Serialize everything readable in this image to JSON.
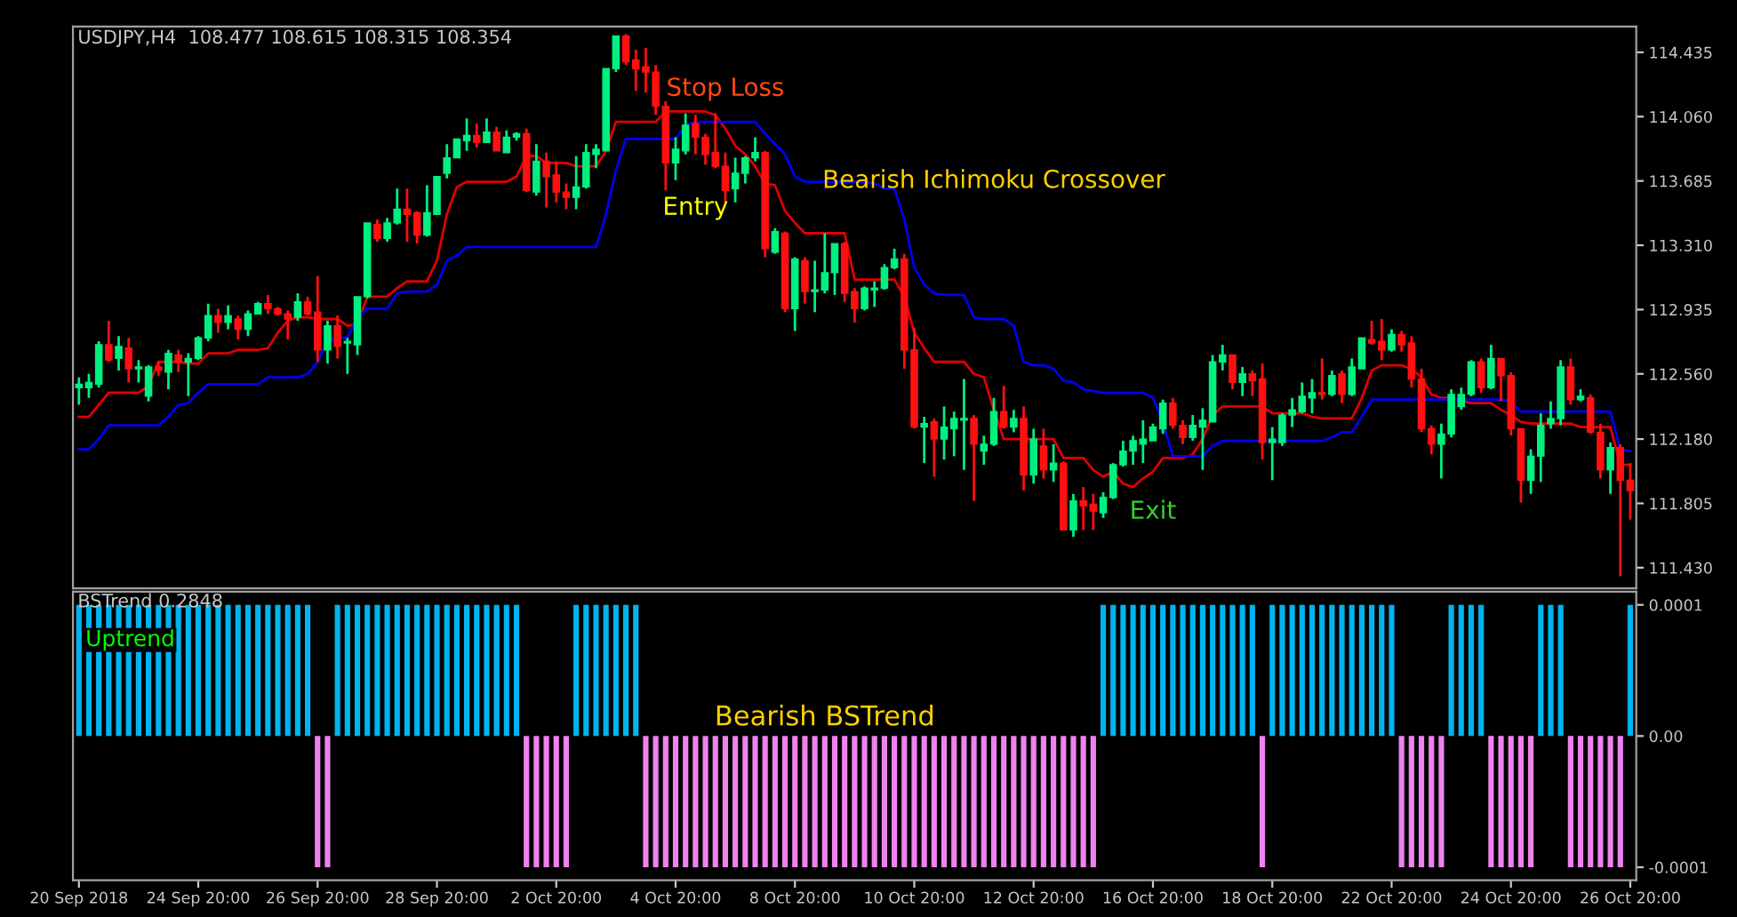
{
  "chart_data": [
    {
      "type": "candlestick",
      "title": "USDJPY,H4  108.477 108.615 108.315 108.354",
      "categories": [
        null,
        null,
        null,
        null,
        null,
        null,
        null,
        null,
        null,
        null,
        null,
        null,
        null,
        null,
        null,
        null,
        null,
        null,
        null,
        null,
        null,
        null,
        null,
        null,
        null,
        null,
        null,
        null,
        null,
        null,
        null,
        null,
        null,
        null,
        null,
        null,
        null,
        null,
        null,
        null,
        null,
        null,
        null,
        null,
        null,
        null,
        null,
        null,
        null,
        null,
        null,
        null,
        null,
        null,
        null,
        null,
        null,
        null,
        null,
        null,
        null,
        null,
        null,
        null,
        null,
        null,
        null,
        null,
        null,
        null,
        null,
        null,
        null,
        null,
        null,
        null,
        null,
        null,
        null,
        null,
        null,
        null,
        null,
        null,
        null,
        null,
        null,
        null,
        null,
        null,
        null,
        null,
        null,
        null,
        null,
        null,
        null,
        null,
        null,
        null,
        null,
        null,
        null,
        null,
        null,
        null,
        null,
        null,
        null,
        null,
        null,
        null,
        null,
        null,
        null,
        null,
        null,
        null,
        null,
        null,
        null,
        null,
        null,
        null,
        null,
        null,
        null,
        null,
        null,
        null,
        null,
        null,
        null,
        null,
        null,
        null,
        null,
        null,
        null,
        null,
        null,
        null,
        null,
        null,
        null,
        null,
        null,
        null,
        null,
        null,
        null,
        null,
        null,
        null,
        null,
        null,
        null
      ],
      "ohlc": [
        [
          112.48,
          112.54,
          112.38,
          112.5
        ],
        [
          112.48,
          112.56,
          112.42,
          112.51
        ],
        [
          112.5,
          112.75,
          112.48,
          112.73
        ],
        [
          112.73,
          112.87,
          112.63,
          112.64
        ],
        [
          112.65,
          112.78,
          112.58,
          112.72
        ],
        [
          112.71,
          112.77,
          112.51,
          112.59
        ],
        [
          112.59,
          112.64,
          112.51,
          112.6
        ],
        [
          112.43,
          112.61,
          112.4,
          112.6
        ],
        [
          112.6,
          112.63,
          112.55,
          112.58
        ],
        [
          112.57,
          112.7,
          112.47,
          112.68
        ],
        [
          112.67,
          112.7,
          112.57,
          112.63
        ],
        [
          112.63,
          112.68,
          112.43,
          112.65
        ],
        [
          112.65,
          112.78,
          112.64,
          112.77
        ],
        [
          112.77,
          112.97,
          112.75,
          112.9
        ],
        [
          112.9,
          112.94,
          112.8,
          112.86
        ],
        [
          112.86,
          112.96,
          112.82,
          112.9
        ],
        [
          112.88,
          112.9,
          112.76,
          112.82
        ],
        [
          112.82,
          112.93,
          112.78,
          112.91
        ],
        [
          112.91,
          112.98,
          112.91,
          112.97
        ],
        [
          112.97,
          113.02,
          112.91,
          112.94
        ],
        [
          112.94,
          112.95,
          112.9,
          112.91
        ],
        [
          112.91,
          112.93,
          112.76,
          112.88
        ],
        [
          112.89,
          113.03,
          112.87,
          112.98
        ],
        [
          112.98,
          113.01,
          112.9,
          112.91
        ],
        [
          112.92,
          113.13,
          112.63,
          112.7
        ],
        [
          112.7,
          112.87,
          112.62,
          112.84
        ],
        [
          112.84,
          112.9,
          112.65,
          112.72
        ],
        [
          112.74,
          112.77,
          112.56,
          112.75
        ],
        [
          112.73,
          113.01,
          112.67,
          113.01
        ],
        [
          113.01,
          113.44,
          113.0,
          113.44
        ],
        [
          113.43,
          113.46,
          113.33,
          113.35
        ],
        [
          113.35,
          113.47,
          113.33,
          113.44
        ],
        [
          113.44,
          113.64,
          113.43,
          113.52
        ],
        [
          113.52,
          113.64,
          113.33,
          113.49
        ],
        [
          113.5,
          113.51,
          113.32,
          113.37
        ],
        [
          113.37,
          113.66,
          113.36,
          113.5
        ],
        [
          113.49,
          113.71,
          113.49,
          113.71
        ],
        [
          113.73,
          113.9,
          113.7,
          113.82
        ],
        [
          113.82,
          113.93,
          113.82,
          113.93
        ],
        [
          113.92,
          114.05,
          113.86,
          113.95
        ],
        [
          113.95,
          114.02,
          113.88,
          113.91
        ],
        [
          113.91,
          114.05,
          113.91,
          113.97
        ],
        [
          113.97,
          114.0,
          113.86,
          113.86
        ],
        [
          113.85,
          113.98,
          113.85,
          113.94
        ],
        [
          113.94,
          113.97,
          113.92,
          113.96
        ],
        [
          113.96,
          113.99,
          113.62,
          113.63
        ],
        [
          113.62,
          113.9,
          113.6,
          113.8
        ],
        [
          113.8,
          113.85,
          113.53,
          113.71
        ],
        [
          113.72,
          113.8,
          113.56,
          113.62
        ],
        [
          113.62,
          113.67,
          113.52,
          113.59
        ],
        [
          113.59,
          113.83,
          113.52,
          113.65
        ],
        [
          113.65,
          113.9,
          113.64,
          113.85
        ],
        [
          113.84,
          113.9,
          113.76,
          113.87
        ],
        [
          113.86,
          114.34,
          113.86,
          114.34
        ],
        [
          114.34,
          114.53,
          114.32,
          114.53
        ],
        [
          114.53,
          114.54,
          114.36,
          114.38
        ],
        [
          114.39,
          114.45,
          114.21,
          114.34
        ],
        [
          114.35,
          114.46,
          114.2,
          114.32
        ],
        [
          114.32,
          114.36,
          114.07,
          114.12
        ],
        [
          114.12,
          114.15,
          113.63,
          113.79
        ],
        [
          113.79,
          113.94,
          113.69,
          113.87
        ],
        [
          113.86,
          114.08,
          113.84,
          114.01
        ],
        [
          114.02,
          114.07,
          113.84,
          113.94
        ],
        [
          113.94,
          113.96,
          113.78,
          113.84
        ],
        [
          113.85,
          114.08,
          113.76,
          113.77
        ],
        [
          113.77,
          113.85,
          113.56,
          113.63
        ],
        [
          113.64,
          113.82,
          113.56,
          113.73
        ],
        [
          113.73,
          113.83,
          113.67,
          113.82
        ],
        [
          113.82,
          113.94,
          113.8,
          113.85
        ],
        [
          113.85,
          113.86,
          113.24,
          113.29
        ],
        [
          113.27,
          113.41,
          113.26,
          113.39
        ],
        [
          113.38,
          113.39,
          112.92,
          112.94
        ],
        [
          112.94,
          113.24,
          112.81,
          113.23
        ],
        [
          113.22,
          113.24,
          112.97,
          113.04
        ],
        [
          113.04,
          113.22,
          112.92,
          113.05
        ],
        [
          113.05,
          113.38,
          113.03,
          113.15
        ],
        [
          113.15,
          113.32,
          113.02,
          113.32
        ],
        [
          113.32,
          113.33,
          112.98,
          113.03
        ],
        [
          113.04,
          113.06,
          112.86,
          112.94
        ],
        [
          112.94,
          113.07,
          112.93,
          113.06
        ],
        [
          113.05,
          113.1,
          112.95,
          113.06
        ],
        [
          113.06,
          113.2,
          113.05,
          113.18
        ],
        [
          113.18,
          113.29,
          113.17,
          113.23
        ],
        [
          113.23,
          113.26,
          112.59,
          112.7
        ],
        [
          112.7,
          112.83,
          112.24,
          112.25
        ],
        [
          112.25,
          112.31,
          112.04,
          112.27
        ],
        [
          112.28,
          112.3,
          111.96,
          112.18
        ],
        [
          112.18,
          112.37,
          112.06,
          112.25
        ],
        [
          112.24,
          112.34,
          112.08,
          112.3
        ],
        [
          112.29,
          112.53,
          112.0,
          112.3
        ],
        [
          112.3,
          112.32,
          111.82,
          112.15
        ],
        [
          112.11,
          112.2,
          112.03,
          112.15
        ],
        [
          112.15,
          112.42,
          112.14,
          112.34
        ],
        [
          112.34,
          112.49,
          112.24,
          112.25
        ],
        [
          112.25,
          112.35,
          112.22,
          112.3
        ],
        [
          112.3,
          112.37,
          111.88,
          111.97
        ],
        [
          111.97,
          112.24,
          111.92,
          112.18
        ],
        [
          112.14,
          112.24,
          111.95,
          112.0
        ],
        [
          112.0,
          112.15,
          111.93,
          112.04
        ],
        [
          112.04,
          112.05,
          111.65,
          111.65
        ],
        [
          111.65,
          111.86,
          111.61,
          111.82
        ],
        [
          111.82,
          111.9,
          111.65,
          111.79
        ],
        [
          111.8,
          111.86,
          111.65,
          111.76
        ],
        [
          111.75,
          111.87,
          111.72,
          111.84
        ],
        [
          111.84,
          112.04,
          111.83,
          112.03
        ],
        [
          112.03,
          112.17,
          112.02,
          112.11
        ],
        [
          112.11,
          112.2,
          112.03,
          112.17
        ],
        [
          112.15,
          112.29,
          112.04,
          112.18
        ],
        [
          112.17,
          112.27,
          112.17,
          112.25
        ],
        [
          112.24,
          112.41,
          112.21,
          112.39
        ],
        [
          112.39,
          112.42,
          112.24,
          112.26
        ],
        [
          112.26,
          112.29,
          112.15,
          112.19
        ],
        [
          112.19,
          112.32,
          112.17,
          112.26
        ],
        [
          112.25,
          112.36,
          112.0,
          112.29
        ],
        [
          112.28,
          112.67,
          112.28,
          112.63
        ],
        [
          112.63,
          112.73,
          112.58,
          112.67
        ],
        [
          112.67,
          112.67,
          112.47,
          112.51
        ],
        [
          112.51,
          112.6,
          112.43,
          112.56
        ],
        [
          112.56,
          112.58,
          112.43,
          112.52
        ],
        [
          112.53,
          112.62,
          112.06,
          112.16
        ],
        [
          112.16,
          112.25,
          111.94,
          112.18
        ],
        [
          112.16,
          112.33,
          112.14,
          112.32
        ],
        [
          112.32,
          112.42,
          112.25,
          112.35
        ],
        [
          112.34,
          112.51,
          112.33,
          112.43
        ],
        [
          112.42,
          112.53,
          112.33,
          112.45
        ],
        [
          112.45,
          112.65,
          112.41,
          112.44
        ],
        [
          112.44,
          112.58,
          112.43,
          112.55
        ],
        [
          112.56,
          112.58,
          112.39,
          112.44
        ],
        [
          112.44,
          112.65,
          112.43,
          112.6
        ],
        [
          112.59,
          112.77,
          112.59,
          112.77
        ],
        [
          112.76,
          112.87,
          112.73,
          112.74
        ],
        [
          112.75,
          112.88,
          112.64,
          112.7
        ],
        [
          112.7,
          112.82,
          112.69,
          112.79
        ],
        [
          112.79,
          112.81,
          112.69,
          112.73
        ],
        [
          112.74,
          112.78,
          112.48,
          112.53
        ],
        [
          112.53,
          112.59,
          112.22,
          112.24
        ],
        [
          112.24,
          112.26,
          112.09,
          112.15
        ],
        [
          112.15,
          112.27,
          111.95,
          112.21
        ],
        [
          112.21,
          112.47,
          112.19,
          112.44
        ],
        [
          112.37,
          112.48,
          112.35,
          112.44
        ],
        [
          112.44,
          112.64,
          112.43,
          112.63
        ],
        [
          112.63,
          112.65,
          112.45,
          112.48
        ],
        [
          112.48,
          112.73,
          112.47,
          112.65
        ],
        [
          112.65,
          112.65,
          112.4,
          112.55
        ],
        [
          112.55,
          112.57,
          112.2,
          112.24
        ],
        [
          112.24,
          112.24,
          111.81,
          111.94
        ],
        [
          111.94,
          112.12,
          111.86,
          112.08
        ],
        [
          112.08,
          112.33,
          111.93,
          112.26
        ],
        [
          112.27,
          112.4,
          112.24,
          112.3
        ],
        [
          112.3,
          112.64,
          112.26,
          112.6
        ],
        [
          112.6,
          112.65,
          112.38,
          112.41
        ],
        [
          112.41,
          112.47,
          112.4,
          112.43
        ],
        [
          112.42,
          112.44,
          112.21,
          112.22
        ],
        [
          112.22,
          112.27,
          111.95,
          112.0
        ],
        [
          112.0,
          112.16,
          111.86,
          112.13
        ],
        [
          112.13,
          112.15,
          111.38,
          111.94
        ],
        [
          111.94,
          112.04,
          111.71,
          111.88
        ]
      ],
      "series": [
        {
          "type": "line",
          "color": "#e00000",
          "values": [
            112.31,
            112.31,
            112.38,
            112.45,
            112.45,
            112.45,
            112.45,
            112.49,
            112.63,
            112.63,
            112.63,
            112.62,
            112.62,
            112.68,
            112.68,
            112.68,
            112.7,
            112.7,
            112.7,
            112.71,
            112.8,
            112.87,
            112.89,
            112.89,
            112.88,
            112.88,
            112.88,
            112.84,
            112.85,
            113.01,
            113.01,
            113.01,
            113.06,
            113.1,
            113.1,
            113.1,
            113.22,
            113.49,
            113.65,
            113.68,
            113.68,
            113.68,
            113.68,
            113.68,
            113.71,
            113.83,
            113.83,
            113.79,
            113.79,
            113.79,
            113.77,
            113.77,
            113.77,
            113.86,
            114.03,
            114.03,
            114.03,
            114.03,
            114.03,
            114.09,
            114.09,
            114.09,
            114.09,
            114.09,
            114.07,
            113.99,
            113.89,
            113.84,
            113.77,
            113.67,
            113.66,
            113.51,
            113.44,
            113.38,
            113.38,
            113.38,
            113.38,
            113.38,
            113.11,
            113.11,
            113.11,
            113.11,
            113.11,
            113.01,
            112.8,
            112.71,
            112.63,
            112.63,
            112.63,
            112.63,
            112.56,
            112.54,
            112.35,
            112.18,
            112.18,
            112.18,
            112.18,
            112.18,
            112.18,
            112.07,
            112.07,
            112.07,
            112.0,
            111.96,
            111.99,
            111.92,
            111.9,
            111.95,
            111.99,
            112.07,
            112.07,
            112.07,
            112.09,
            112.18,
            112.32,
            112.37,
            112.37,
            112.37,
            112.37,
            112.37,
            112.33,
            112.33,
            112.33,
            112.33,
            112.31,
            112.3,
            112.3,
            112.3,
            112.3,
            112.42,
            112.58,
            112.61,
            112.61,
            112.61,
            112.59,
            112.54,
            112.44,
            112.42,
            112.42,
            112.4,
            112.39,
            112.39,
            112.39,
            112.35,
            112.32,
            112.28,
            112.27,
            112.27,
            112.27,
            112.27,
            112.27,
            112.25,
            112.25,
            112.25,
            112.25,
            112.03,
            112.03
          ]
        },
        {
          "type": "line",
          "color": "#0000f0",
          "values": [
            112.12,
            112.12,
            112.18,
            112.26,
            112.26,
            112.26,
            112.26,
            112.26,
            112.26,
            112.31,
            112.38,
            112.39,
            112.45,
            112.5,
            112.5,
            112.5,
            112.5,
            112.5,
            112.5,
            112.54,
            112.54,
            112.54,
            112.54,
            112.56,
            112.63,
            112.75,
            112.77,
            112.77,
            112.89,
            112.94,
            112.94,
            112.94,
            113.03,
            113.04,
            113.04,
            113.04,
            113.08,
            113.22,
            113.25,
            113.3,
            113.3,
            113.3,
            113.3,
            113.3,
            113.3,
            113.3,
            113.3,
            113.3,
            113.3,
            113.3,
            113.3,
            113.3,
            113.3,
            113.49,
            113.75,
            113.93,
            113.93,
            113.93,
            113.93,
            113.93,
            113.93,
            114.01,
            114.03,
            114.03,
            114.03,
            114.03,
            114.03,
            114.03,
            114.03,
            113.96,
            113.9,
            113.84,
            113.71,
            113.68,
            113.68,
            113.68,
            113.68,
            113.68,
            113.68,
            113.68,
            113.67,
            113.64,
            113.64,
            113.46,
            113.18,
            113.08,
            113.03,
            113.02,
            113.02,
            113.02,
            112.89,
            112.88,
            112.88,
            112.88,
            112.84,
            112.63,
            112.61,
            112.61,
            112.59,
            112.52,
            112.51,
            112.47,
            112.46,
            112.45,
            112.45,
            112.45,
            112.45,
            112.45,
            112.42,
            112.28,
            112.08,
            112.08,
            112.08,
            112.08,
            112.14,
            112.17,
            112.17,
            112.17,
            112.17,
            112.17,
            112.17,
            112.17,
            112.17,
            112.17,
            112.17,
            112.17,
            112.19,
            112.22,
            112.22,
            112.31,
            112.41,
            112.41,
            112.41,
            112.41,
            112.41,
            112.41,
            112.41,
            112.41,
            112.41,
            112.41,
            112.41,
            112.41,
            112.41,
            112.41,
            112.4,
            112.34,
            112.34,
            112.34,
            112.34,
            112.34,
            112.34,
            112.34,
            112.34,
            112.34,
            112.34,
            112.12,
            112.11
          ]
        }
      ],
      "ylim": [
        111.31,
        114.585
      ],
      "yticks": [
        {
          "value": 114.435,
          "label": "114.435"
        },
        {
          "value": 114.06,
          "label": "114.060"
        },
        {
          "value": 113.685,
          "label": "113.685"
        },
        {
          "value": 113.31,
          "label": "113.310"
        },
        {
          "value": 112.935,
          "label": "112.935"
        },
        {
          "value": 112.56,
          "label": "112.560"
        },
        {
          "value": 112.18,
          "label": "112.180"
        },
        {
          "value": 111.805,
          "label": "111.805"
        },
        {
          "value": 111.43,
          "label": "111.430"
        }
      ],
      "tick_labels": "y",
      "annotations": [
        "Stop Loss",
        "Entry",
        "Bearish Ichimoku Crossover",
        "Exit"
      ]
    },
    {
      "type": "bar",
      "title": "BSTrend 0.2848",
      "subtitle": "Uptrend",
      "categories": [
        "20 Sep 2018",
        null,
        null,
        null,
        null,
        null,
        null,
        null,
        null,
        null,
        null,
        null,
        "24 Sep 20:00",
        null,
        null,
        null,
        null,
        null,
        null,
        null,
        null,
        null,
        null,
        null,
        "26 Sep 20:00",
        null,
        null,
        null,
        null,
        null,
        null,
        null,
        null,
        null,
        null,
        null,
        "28 Sep 20:00",
        null,
        null,
        null,
        null,
        null,
        null,
        null,
        null,
        null,
        null,
        null,
        "2 Oct 20:00",
        null,
        null,
        null,
        null,
        null,
        null,
        null,
        null,
        null,
        null,
        null,
        "4 Oct 20:00",
        null,
        null,
        null,
        null,
        null,
        null,
        null,
        null,
        null,
        null,
        null,
        "8 Oct 20:00",
        null,
        null,
        null,
        null,
        null,
        null,
        null,
        null,
        null,
        null,
        null,
        "10 Oct 20:00",
        null,
        null,
        null,
        null,
        null,
        null,
        null,
        null,
        null,
        null,
        null,
        "12 Oct 20:00",
        null,
        null,
        null,
        null,
        null,
        null,
        null,
        null,
        null,
        null,
        null,
        "16 Oct 20:00",
        null,
        null,
        null,
        null,
        null,
        null,
        null,
        null,
        null,
        null,
        null,
        "18 Oct 20:00",
        null,
        null,
        null,
        null,
        null,
        null,
        null,
        null,
        null,
        null,
        null,
        "22 Oct 20:00",
        null,
        null,
        null,
        null,
        null,
        null,
        null,
        null,
        null,
        null,
        null,
        "24 Oct 20:00",
        null,
        null,
        null,
        null,
        null,
        null,
        null,
        null,
        null,
        null,
        null,
        "26 Oct 20:00"
      ],
      "series": [
        {
          "color": "#00b4f0",
          "values": [
            0.0001,
            0.0001,
            0.0001,
            0.0001,
            0.0001,
            0.0001,
            0.0001,
            0.0001,
            0.0001,
            0.0001,
            0.0001,
            0.0001,
            0.0001,
            0.0001,
            0.0001,
            0.0001,
            0.0001,
            0.0001,
            0.0001,
            0.0001,
            0.0001,
            0.0001,
            0.0001,
            0.0001,
            null,
            null,
            0.0001,
            0.0001,
            0.0001,
            0.0001,
            0.0001,
            0.0001,
            0.0001,
            0.0001,
            0.0001,
            0.0001,
            0.0001,
            0.0001,
            0.0001,
            0.0001,
            0.0001,
            0.0001,
            0.0001,
            0.0001,
            0.0001,
            null,
            null,
            null,
            null,
            null,
            0.0001,
            0.0001,
            0.0001,
            0.0001,
            0.0001,
            0.0001,
            0.0001,
            null,
            null,
            null,
            null,
            null,
            null,
            null,
            null,
            null,
            null,
            null,
            null,
            null,
            null,
            null,
            null,
            null,
            null,
            null,
            null,
            null,
            null,
            null,
            null,
            null,
            null,
            null,
            null,
            null,
            null,
            null,
            null,
            null,
            null,
            null,
            null,
            null,
            null,
            null,
            null,
            null,
            null,
            null,
            null,
            null,
            null,
            0.0001,
            0.0001,
            0.0001,
            0.0001,
            0.0001,
            0.0001,
            0.0001,
            0.0001,
            0.0001,
            0.0001,
            0.0001,
            0.0001,
            0.0001,
            0.0001,
            0.0001,
            0.0001,
            null,
            0.0001,
            0.0001,
            0.0001,
            0.0001,
            0.0001,
            0.0001,
            0.0001,
            0.0001,
            0.0001,
            0.0001,
            0.0001,
            0.0001,
            0.0001,
            null,
            null,
            null,
            null,
            null,
            0.0001,
            0.0001,
            0.0001,
            0.0001,
            null,
            null,
            null,
            null,
            null,
            0.0001,
            0.0001,
            0.0001,
            null,
            null,
            null,
            null,
            null,
            null,
            0.0001
          ]
        },
        {
          "color": "#ee82ee",
          "values": [
            null,
            null,
            null,
            null,
            null,
            null,
            null,
            null,
            null,
            null,
            null,
            null,
            null,
            null,
            null,
            null,
            null,
            null,
            null,
            null,
            null,
            null,
            null,
            null,
            -0.0001,
            -0.0001,
            null,
            null,
            null,
            null,
            null,
            null,
            null,
            null,
            null,
            null,
            null,
            null,
            null,
            null,
            null,
            null,
            null,
            null,
            null,
            -0.0001,
            -0.0001,
            -0.0001,
            -0.0001,
            -0.0001,
            null,
            null,
            null,
            null,
            null,
            null,
            null,
            -0.0001,
            -0.0001,
            -0.0001,
            -0.0001,
            -0.0001,
            -0.0001,
            -0.0001,
            -0.0001,
            -0.0001,
            -0.0001,
            -0.0001,
            -0.0001,
            -0.0001,
            -0.0001,
            -0.0001,
            -0.0001,
            -0.0001,
            -0.0001,
            -0.0001,
            -0.0001,
            -0.0001,
            -0.0001,
            -0.0001,
            -0.0001,
            -0.0001,
            -0.0001,
            -0.0001,
            -0.0001,
            -0.0001,
            -0.0001,
            -0.0001,
            -0.0001,
            -0.0001,
            -0.0001,
            -0.0001,
            -0.0001,
            -0.0001,
            -0.0001,
            -0.0001,
            -0.0001,
            -0.0001,
            -0.0001,
            -0.0001,
            -0.0001,
            -0.0001,
            -0.0001,
            null,
            null,
            null,
            null,
            null,
            null,
            null,
            null,
            null,
            null,
            null,
            null,
            null,
            null,
            null,
            null,
            -0.0001,
            null,
            null,
            null,
            null,
            null,
            null,
            null,
            null,
            null,
            null,
            null,
            null,
            null,
            -0.0001,
            -0.0001,
            -0.0001,
            -0.0001,
            -0.0001,
            null,
            null,
            null,
            null,
            -0.0001,
            -0.0001,
            -0.0001,
            -0.0001,
            -0.0001,
            null,
            null,
            null,
            -0.0001,
            -0.0001,
            -0.0001,
            -0.0001,
            -0.0001,
            -0.0001,
            null
          ]
        }
      ],
      "ylim": [
        -0.00011,
        0.00011
      ],
      "yticks": [
        {
          "value": 0.0001,
          "label": "0.0001"
        },
        {
          "value": 0,
          "label": "0.00"
        },
        {
          "value": -0.0001,
          "label": "-0.0001"
        }
      ],
      "annotations": [
        "Bearish BSTrend"
      ]
    }
  ]
}
